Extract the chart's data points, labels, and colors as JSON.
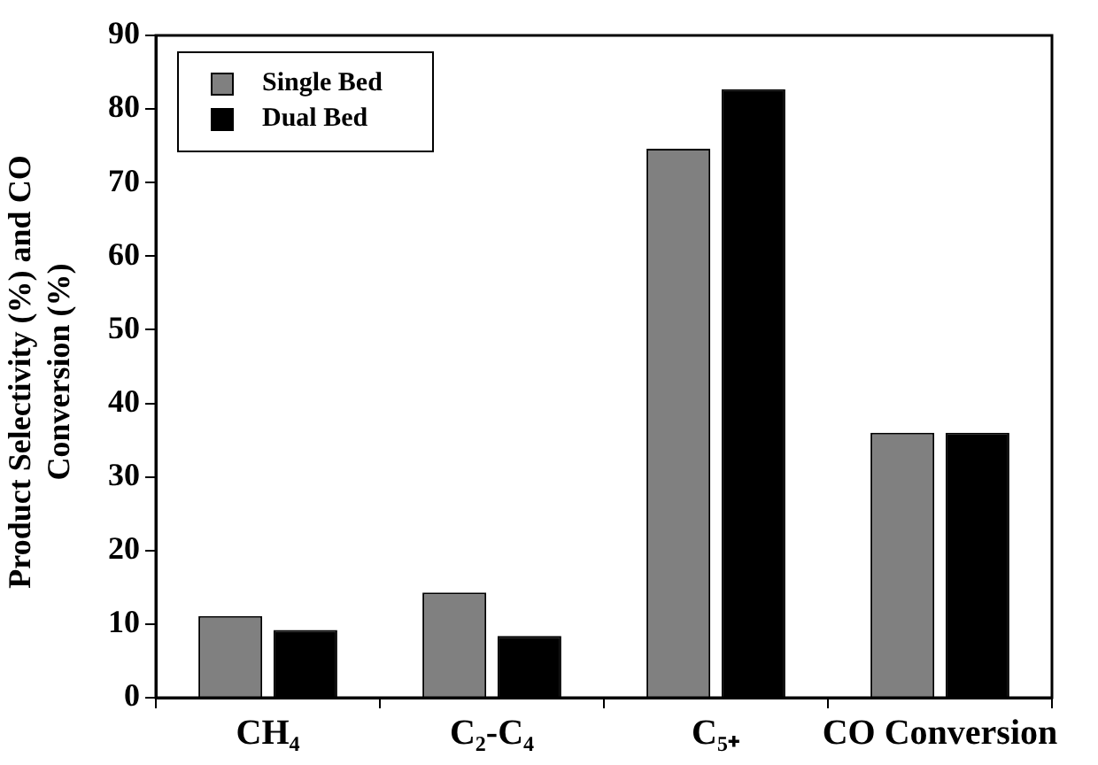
{
  "chart_data": {
    "type": "bar",
    "ylabel": "Product Selectivity (%) and CO Conversion (%)",
    "categories": [
      "CH₄",
      "C₂-C₄",
      "C₅₊",
      "CO Conversion"
    ],
    "series": [
      {
        "name": "Single Bed",
        "color": "#808080",
        "values": [
          11.1,
          14.3,
          74.6,
          36.0
        ]
      },
      {
        "name": "Dual Bed",
        "color": "#000000",
        "values": [
          9.2,
          8.4,
          82.7,
          36.0
        ]
      }
    ],
    "ylim": [
      0,
      90
    ],
    "yticks": [
      0,
      10,
      20,
      30,
      40,
      50,
      60,
      70,
      80,
      90
    ],
    "grid": false,
    "legend": "top left"
  }
}
